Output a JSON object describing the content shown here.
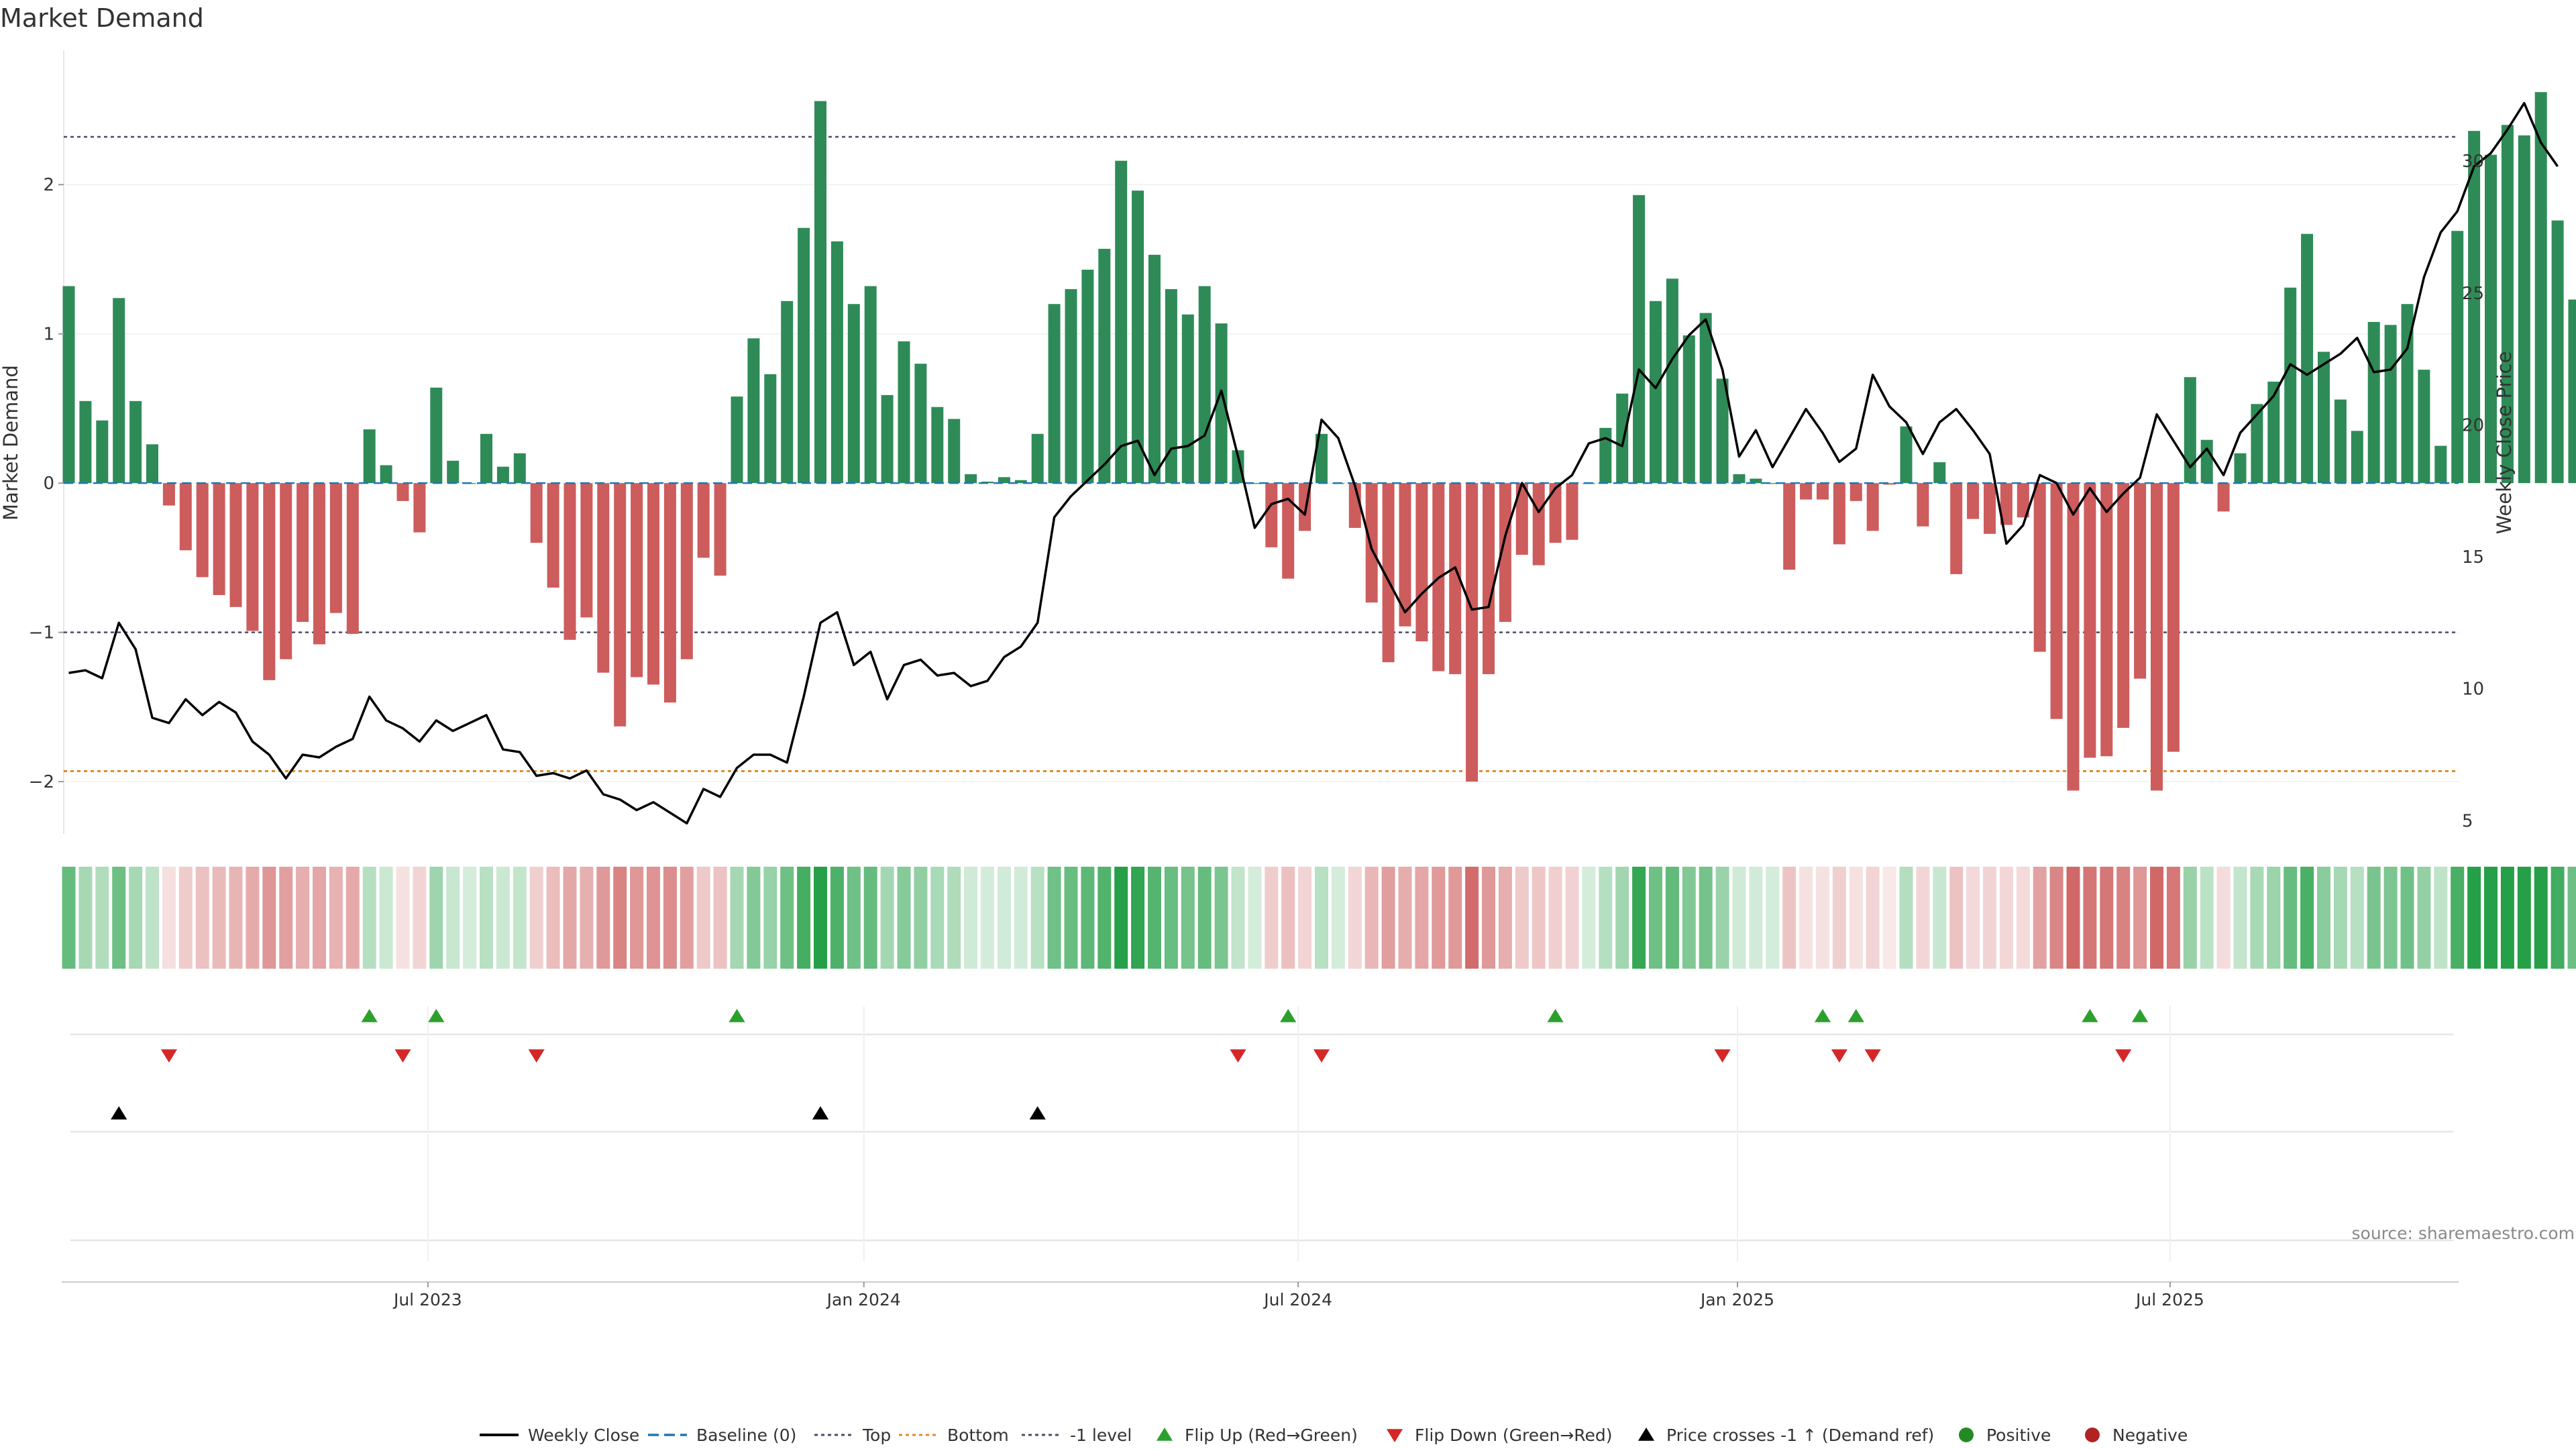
{
  "title": "Market Demand",
  "source": "source: sharemaestro.com",
  "chart_data": {
    "type": "bar",
    "y_left_label": "Market Demand",
    "y_right_label": "Weekly Close Price",
    "y_left_range": [
      -2.35,
      2.9
    ],
    "y_right_range": [
      4.5,
      34.2
    ],
    "y_left_ticks": [
      {
        "v": 2,
        "t": "2"
      },
      {
        "v": 1,
        "t": "1"
      },
      {
        "v": 0,
        "t": "0"
      },
      {
        "v": -1,
        "t": "−1"
      },
      {
        "v": -2,
        "t": "−2"
      }
    ],
    "y_right_ticks": [
      {
        "v": 30,
        "t": "30"
      },
      {
        "v": 25,
        "t": "25"
      },
      {
        "v": 20,
        "t": "20"
      },
      {
        "v": 15,
        "t": "15"
      },
      {
        "v": 10,
        "t": "10"
      },
      {
        "v": 5,
        "t": "5"
      }
    ],
    "levels": {
      "top": 2.32,
      "bottom": -1.93,
      "minus_one": -1,
      "baseline": 0
    },
    "x_ticks": [
      {
        "week": 21.5,
        "label": "Jul 2023"
      },
      {
        "week": 47.6,
        "label": "Jan 2024"
      },
      {
        "week": 73.6,
        "label": "Jul 2024"
      },
      {
        "week": 99.9,
        "label": "Jan 2025"
      },
      {
        "week": 125.8,
        "label": "Jul 2025"
      }
    ],
    "demand": [
      1.32,
      0.55,
      0.42,
      1.24,
      0.55,
      0.26,
      -0.15,
      -0.45,
      -0.63,
      -0.75,
      -0.83,
      -0.99,
      -1.32,
      -1.18,
      -0.93,
      -1.08,
      -0.87,
      -1.01,
      0.36,
      0.12,
      -0.12,
      -0.33,
      0.64,
      0.15,
      0.0,
      0.33,
      0.11,
      0.2,
      -0.4,
      -0.7,
      -1.05,
      -0.9,
      -1.27,
      -1.63,
      -1.3,
      -1.35,
      -1.47,
      -1.18,
      -0.5,
      -0.62,
      0.58,
      0.97,
      0.73,
      1.22,
      1.71,
      2.56,
      1.62,
      1.2,
      1.32,
      0.59,
      0.95,
      0.8,
      0.51,
      0.43,
      0.06,
      0.01,
      0.04,
      0.02,
      0.33,
      1.2,
      1.3,
      1.43,
      1.57,
      2.16,
      1.96,
      1.53,
      1.3,
      1.13,
      1.32,
      1.07,
      0.22,
      0.0,
      -0.43,
      -0.64,
      -0.32,
      0.33,
      0.0,
      -0.3,
      -0.8,
      -1.2,
      -0.96,
      -1.06,
      -1.26,
      -1.28,
      -2.0,
      -1.28,
      -0.93,
      -0.48,
      -0.55,
      -0.4,
      -0.38,
      0.0,
      0.37,
      0.6,
      1.93,
      1.22,
      1.37,
      0.99,
      1.14,
      0.7,
      0.06,
      0.03,
      0.0,
      -0.58,
      -0.11,
      -0.11,
      -0.41,
      -0.12,
      -0.32,
      -0.01,
      0.38,
      -0.29,
      0.14,
      -0.61,
      -0.24,
      -0.34,
      -0.28,
      -0.23,
      -1.13,
      -1.58,
      -2.06,
      -1.84,
      -1.83,
      -1.64,
      -1.31,
      -2.06,
      -1.8,
      0.71,
      0.29,
      -0.19,
      0.2,
      0.53,
      0.68,
      1.31,
      1.67,
      0.88,
      0.56,
      0.35,
      1.08,
      1.06,
      1.2,
      0.76,
      0.25,
      1.69,
      2.36,
      2.2,
      2.4,
      2.33,
      2.62,
      1.76,
      1.23
    ],
    "weekly_close": [
      10.6,
      10.7,
      10.4,
      12.5,
      11.5,
      8.9,
      8.7,
      9.6,
      9.0,
      9.5,
      9.1,
      8.0,
      7.5,
      6.6,
      7.5,
      7.4,
      7.8,
      8.1,
      9.7,
      8.8,
      8.5,
      8.0,
      8.8,
      8.4,
      8.7,
      9.0,
      7.7,
      7.6,
      6.7,
      6.8,
      6.6,
      6.9,
      6.0,
      5.8,
      5.4,
      5.7,
      5.3,
      4.9,
      6.2,
      5.9,
      7.0,
      7.5,
      7.5,
      7.2,
      9.7,
      12.5,
      12.9,
      10.9,
      11.4,
      9.6,
      10.9,
      11.1,
      10.5,
      10.6,
      10.1,
      10.3,
      11.2,
      11.6,
      12.5,
      16.5,
      17.3,
      17.9,
      18.5,
      19.2,
      19.4,
      18.1,
      19.1,
      19.2,
      19.6,
      21.3,
      18.8,
      16.1,
      17.0,
      17.2,
      16.6,
      20.2,
      19.5,
      17.7,
      15.3,
      14.1,
      12.9,
      13.6,
      14.2,
      14.6,
      13.0,
      13.1,
      15.8,
      17.8,
      16.7,
      17.6,
      18.1,
      19.3,
      19.5,
      19.2,
      22.1,
      21.4,
      22.5,
      23.4,
      24.0,
      22.1,
      18.8,
      19.8,
      18.4,
      19.5,
      20.6,
      19.7,
      18.6,
      19.1,
      21.9,
      20.7,
      20.1,
      18.9,
      20.1,
      20.6,
      19.8,
      18.9,
      15.5,
      16.2,
      18.1,
      17.8,
      16.6,
      17.6,
      16.7,
      17.4,
      18.0,
      20.4,
      19.4,
      18.4,
      19.1,
      18.1,
      19.7,
      20.4,
      21.1,
      22.3,
      21.9,
      22.3,
      22.7,
      23.3,
      22.0,
      22.1,
      22.9,
      25.6,
      27.3,
      28.1,
      29.8,
      30.3,
      31.2,
      32.2,
      30.7,
      29.8
    ],
    "flip_up_weeks": [
      18,
      22,
      40,
      73,
      89,
      105,
      107,
      121,
      124
    ],
    "flip_down_weeks": [
      6,
      20,
      28,
      70,
      75,
      99,
      106,
      108,
      123
    ],
    "price_cross_weeks": [
      3,
      45,
      58
    ],
    "colors": {
      "positive": "#2e8b57",
      "negative": "#cd5c5c",
      "price": "#000000",
      "baseline": "#1f77b4",
      "top": "#4a4a6a",
      "bottom": "#e08a2c",
      "minus_one": "#4a4a6a",
      "flip_up": "#2ca02c",
      "flip_down": "#d62728",
      "cross": "#000000",
      "legend_positive": "#228b22",
      "legend_negative": "#b22222"
    },
    "legend": [
      {
        "label": "Weekly Close",
        "kind": "line"
      },
      {
        "label": "Baseline (0)",
        "kind": "dash"
      },
      {
        "label": "Top",
        "kind": "dot"
      },
      {
        "label": "Bottom",
        "kind": "dot-orange"
      },
      {
        "label": "-1 level",
        "kind": "dot"
      },
      {
        "label": "Flip Up (Red→Green)",
        "kind": "tri-up-green"
      },
      {
        "label": "Flip Down (Green→Red)",
        "kind": "tri-down-red"
      },
      {
        "label": "Price crosses -1 ↑ (Demand ref)",
        "kind": "tri-up-black"
      },
      {
        "label": "Positive",
        "kind": "dot-green"
      },
      {
        "label": "Negative",
        "kind": "dot-red"
      }
    ]
  }
}
